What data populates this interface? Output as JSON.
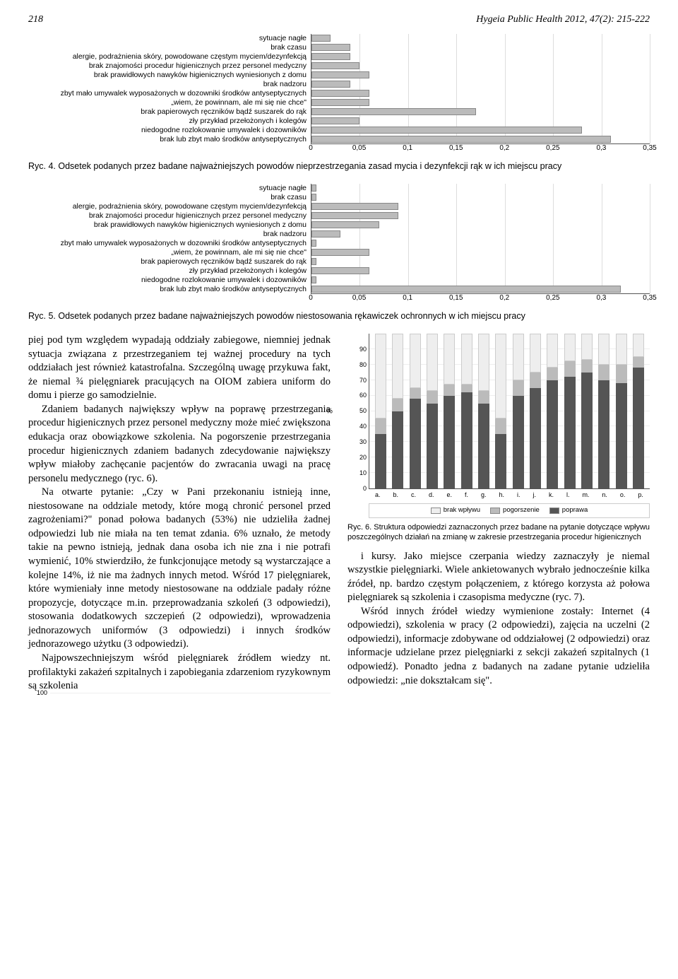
{
  "header": {
    "page_no": "218",
    "journal": "Hygeia Public Health  2012, 47(2): 215-222"
  },
  "chart4": {
    "type": "bar-horizontal",
    "xlim": 0.35,
    "xticks": [
      0,
      0.05,
      0.1,
      0.15,
      0.2,
      0.25,
      0.3,
      0.35
    ],
    "xtick_labels": [
      "0",
      "0,05",
      "0,1",
      "0,15",
      "0,2",
      "0,25",
      "0,3",
      "0,35"
    ],
    "bar_color": "#bbbbbb",
    "rows": [
      {
        "label": "sytuacje nagłe",
        "value": 0.02
      },
      {
        "label": "brak czasu",
        "value": 0.04
      },
      {
        "label": "alergie, podrażnienia skóry, powodowane częstym myciem/dezynfekcją",
        "value": 0.04
      },
      {
        "label": "brak znajomości procedur higienicznych przez personel medyczny",
        "value": 0.05
      },
      {
        "label": "brak prawidłowych nawyków higienicznych wyniesionych z domu",
        "value": 0.06
      },
      {
        "label": "brak nadzoru",
        "value": 0.04
      },
      {
        "label": "zbyt mało umywalek wyposażonych w dozowniki środków antyseptycznych",
        "value": 0.06
      },
      {
        "label": "„wiem, że powinnam, ale mi się nie chce\"",
        "value": 0.06
      },
      {
        "label": "brak papierowych ręczników bądź suszarek do rąk",
        "value": 0.17
      },
      {
        "label": "zły przykład przełożonych i kolegów",
        "value": 0.05
      },
      {
        "label": "niedogodne rozlokowanie umywalek i dozowników",
        "value": 0.28
      },
      {
        "label": "brak lub zbyt mało środków antyseptycznych",
        "value": 0.31
      }
    ],
    "caption": "Ryc. 4. Odsetek podanych przez badane najważniejszych powodów nieprzestrzegania zasad mycia i dezynfekcji rąk w ich miejscu pracy"
  },
  "chart5": {
    "type": "bar-horizontal",
    "xlim": 0.35,
    "xticks": [
      0,
      0.05,
      0.1,
      0.15,
      0.2,
      0.25,
      0.3,
      0.35
    ],
    "xtick_labels": [
      "0",
      "0,05",
      "0,1",
      "0,15",
      "0,2",
      "0,25",
      "0,3",
      "0,35"
    ],
    "bar_color": "#bbbbbb",
    "rows": [
      {
        "label": "sytuacje nagłe",
        "value": 0.005
      },
      {
        "label": "brak czasu",
        "value": 0.005
      },
      {
        "label": "alergie, podrażnienia skóry, powodowane częstym myciem/dezynfekcją",
        "value": 0.09
      },
      {
        "label": "brak znajomości procedur higienicznych przez personel medyczny",
        "value": 0.09
      },
      {
        "label": "brak prawidłowych nawyków higienicznych wyniesionych z domu",
        "value": 0.07
      },
      {
        "label": "brak nadzoru",
        "value": 0.03
      },
      {
        "label": "zbyt mało umywalek wyposażonych w dozowniki środków antyseptycznych",
        "value": 0.005
      },
      {
        "label": "„wiem, że powinnam, ale mi się nie chce\"",
        "value": 0.06
      },
      {
        "label": "brak papierowych ręczników bądź suszarek do rąk",
        "value": 0.005
      },
      {
        "label": "zły przykład przełożonych i kolegów",
        "value": 0.06
      },
      {
        "label": "niedogodne rozlokowanie umywalek i dozowników",
        "value": 0.005
      },
      {
        "label": "brak lub zbyt mało środków antyseptycznych",
        "value": 0.32
      }
    ],
    "caption": "Ryc. 5. Odsetek podanych przez badane najważniejszych powodów niestosowania rękawiczek ochronnych w ich miejscu pracy"
  },
  "chart6": {
    "type": "stacked-bar",
    "ylim": 100,
    "yticks": [
      0,
      10,
      20,
      30,
      40,
      50,
      60,
      70,
      80,
      90,
      100
    ],
    "ylabel": "%",
    "categories": [
      "a.",
      "b.",
      "c.",
      "d.",
      "e.",
      "f.",
      "g.",
      "h.",
      "i.",
      "j.",
      "k.",
      "l.",
      "m.",
      "n.",
      "o.",
      "p."
    ],
    "legend": [
      "brak wpływu",
      "pogorszenie",
      "poprawa"
    ],
    "colors": {
      "brak wpływu": "#eeeeee",
      "pogorszenie": "#bbbbbb",
      "poprawa": "#555555"
    },
    "bars": [
      {
        "poprawa": 35,
        "pogorszenie": 10,
        "brak": 55
      },
      {
        "poprawa": 50,
        "pogorszenie": 8,
        "brak": 42
      },
      {
        "poprawa": 58,
        "pogorszenie": 7,
        "brak": 35
      },
      {
        "poprawa": 55,
        "pogorszenie": 8,
        "brak": 37
      },
      {
        "poprawa": 60,
        "pogorszenie": 7,
        "brak": 33
      },
      {
        "poprawa": 62,
        "pogorszenie": 5,
        "brak": 33
      },
      {
        "poprawa": 55,
        "pogorszenie": 8,
        "brak": 37
      },
      {
        "poprawa": 35,
        "pogorszenie": 10,
        "brak": 55
      },
      {
        "poprawa": 60,
        "pogorszenie": 10,
        "brak": 30
      },
      {
        "poprawa": 65,
        "pogorszenie": 10,
        "brak": 25
      },
      {
        "poprawa": 70,
        "pogorszenie": 8,
        "brak": 22
      },
      {
        "poprawa": 72,
        "pogorszenie": 10,
        "brak": 18
      },
      {
        "poprawa": 75,
        "pogorszenie": 8,
        "brak": 17
      },
      {
        "poprawa": 70,
        "pogorszenie": 10,
        "brak": 20
      },
      {
        "poprawa": 68,
        "pogorszenie": 12,
        "brak": 20
      },
      {
        "poprawa": 78,
        "pogorszenie": 7,
        "brak": 15
      }
    ],
    "caption": "Ryc. 6. Struktura odpowiedzi zaznaczonych przez badane na pytanie dotyczące wpływu poszczególnych działań na zmianę w zakresie przestrzegania procedur higienicznych"
  },
  "body": {
    "p1": "piej pod tym względem wypadają oddziały zabiegowe, niemniej jednak sytuacja związana z przestrzeganiem tej ważnej procedury na tych oddziałach jest również katastrofalna. Szczególną uwagę przykuwa fakt, że niemal ¾ pielęgniarek pracujących na OIOM zabiera uniform do domu i pierze go samodzielnie.",
    "p2": "Zdaniem badanych największy wpływ na poprawę przestrzegania procedur higienicznych przez personel medyczny może mieć zwiększona edukacja oraz obowiązkowe szkolenia. Na pogorszenie przestrzegania procedur higienicznych zdaniem badanych zdecydowanie największy wpływ miałoby zachęcanie pacjentów do zwracania uwagi na pracę personelu medycznego (ryc. 6).",
    "p3": "Na otwarte pytanie: „Czy w Pani przekonaniu istnieją inne, niestosowane na oddziale metody, które mogą chronić personel przed zagrożeniami?\" ponad połowa badanych (53%) nie udzieliła żadnej odpowiedzi lub nie miała na ten temat zdania. 6% uznało, że metody takie na pewno istnieją, jednak dana osoba ich nie zna i nie potrafi wymienić, 10% stwierdziło, że funkcjonujące metody są wystarczające a kolejne 14%, iż nie ma żadnych innych metod. Wśród 17 pielęgniarek, które wymieniały inne metody niestosowane na oddziale padały różne propozycje, dotyczące m.in. przeprowadzania szkoleń (3 odpowiedzi), stosowania dodatkowych szczepień (2 odpowiedzi), wprowadzenia jednorazowych uniformów (3 odpowiedzi) i innych środków jednorazowego użytku (3 odpowiedzi).",
    "p4": "Najpowszechniejszym wśród pielęgniarek źródłem wiedzy nt. profilaktyki zakażeń szpitalnych i zapobiegania zdarzeniom ryzykownym są szkolenia",
    "p5": "i kursy. Jako miejsce czerpania wiedzy zaznaczyły je niemal wszystkie pielęgniarki. Wiele ankietowanych wybrało jednocześnie kilka źródeł, np. bardzo częstym połączeniem, z którego korzysta aż połowa pielęgniarek są szkolenia i czasopisma medyczne (ryc. 7).",
    "p6": "Wśród innych źródeł wiedzy wymienione zostały: Internet (4 odpowiedzi), szkolenia w pracy (2 odpowiedzi), zajęcia na uczelni (2 odpowiedzi), informacje zdobywane od oddziałowej (2 odpowiedzi) oraz informacje udzielane przez pielęgniarki z sekcji zakażeń szpitalnych (1 odpowiedź). Ponadto jedna z badanych na zadane pytanie udzieliła odpowiedzi: „nie dokształcam się\"."
  }
}
